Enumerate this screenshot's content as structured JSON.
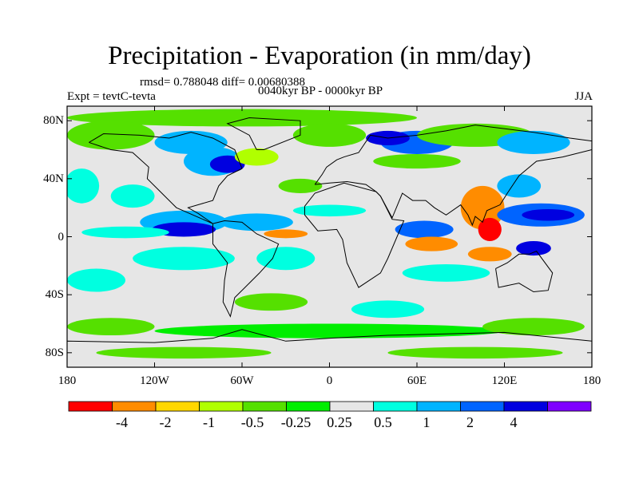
{
  "title": "Precipitation - Evaporation (in mm/day)",
  "stats": "rmsd= 0.788048 diff= 0.00680388",
  "period": "0040kyr BP - 0000kyr BP",
  "experiment": "Expt = tevtC-tevta",
  "season": "JJA",
  "axes": {
    "y_ticks": [
      {
        "label": "80N",
        "value": 80
      },
      {
        "label": "40N",
        "value": 40
      },
      {
        "label": "0",
        "value": 0
      },
      {
        "label": "40S",
        "value": -40
      },
      {
        "label": "80S",
        "value": -80
      }
    ],
    "x_ticks": [
      {
        "label": "180",
        "value": -180
      },
      {
        "label": "120W",
        "value": -120
      },
      {
        "label": "60W",
        "value": -60
      },
      {
        "label": "0",
        "value": 0
      },
      {
        "label": "60E",
        "value": 60
      },
      {
        "label": "120E",
        "value": 120
      },
      {
        "label": "180",
        "value": 180
      }
    ],
    "lon_range": [
      -180,
      180
    ],
    "lat_range": [
      -90,
      90
    ]
  },
  "colorbar": {
    "colors": [
      "#ff0000",
      "#ff8c00",
      "#ffd700",
      "#b0ff00",
      "#55e000",
      "#00ee00",
      "#e6e6e6",
      "#00ffe0",
      "#00b4ff",
      "#0064ff",
      "#0000e0",
      "#7f00ff"
    ],
    "labels": [
      "-4",
      "-2",
      "-1",
      "-0.5",
      "-0.25",
      "0.25",
      "0.5",
      "1",
      "2",
      "4"
    ]
  },
  "regions": [
    {
      "lon": -60,
      "lat": 82,
      "rx": 120,
      "ry": 6,
      "color": "#55e000"
    },
    {
      "lon": -150,
      "lat": 70,
      "rx": 30,
      "ry": 10,
      "color": "#55e000"
    },
    {
      "lon": -95,
      "lat": 65,
      "rx": 25,
      "ry": 8,
      "color": "#00b4ff"
    },
    {
      "lon": -80,
      "lat": 52,
      "rx": 20,
      "ry": 10,
      "color": "#00b4ff"
    },
    {
      "lon": -70,
      "lat": 50,
      "rx": 12,
      "ry": 6,
      "color": "#0000e0"
    },
    {
      "lon": -50,
      "lat": 55,
      "rx": 15,
      "ry": 6,
      "color": "#b0ff00"
    },
    {
      "lon": 0,
      "lat": 70,
      "rx": 25,
      "ry": 8,
      "color": "#55e000"
    },
    {
      "lon": 60,
      "lat": 65,
      "rx": 25,
      "ry": 8,
      "color": "#0064ff"
    },
    {
      "lon": 40,
      "lat": 68,
      "rx": 15,
      "ry": 5,
      "color": "#0000e0"
    },
    {
      "lon": 100,
      "lat": 70,
      "rx": 40,
      "ry": 8,
      "color": "#55e000"
    },
    {
      "lon": 140,
      "lat": 65,
      "rx": 25,
      "ry": 8,
      "color": "#00b4ff"
    },
    {
      "lon": 60,
      "lat": 52,
      "rx": 30,
      "ry": 5,
      "color": "#55e000"
    },
    {
      "lon": -170,
      "lat": 35,
      "rx": 12,
      "ry": 12,
      "color": "#00ffe0"
    },
    {
      "lon": -135,
      "lat": 28,
      "rx": 15,
      "ry": 8,
      "color": "#00ffe0"
    },
    {
      "lon": -20,
      "lat": 35,
      "rx": 15,
      "ry": 5,
      "color": "#55e000"
    },
    {
      "lon": -100,
      "lat": 10,
      "rx": 30,
      "ry": 8,
      "color": "#00b4ff"
    },
    {
      "lon": -100,
      "lat": 5,
      "rx": 22,
      "ry": 5,
      "color": "#0000e0"
    },
    {
      "lon": -50,
      "lat": 10,
      "rx": 25,
      "ry": 6,
      "color": "#00b4ff"
    },
    {
      "lon": -30,
      "lat": 2,
      "rx": 15,
      "ry": 3,
      "color": "#ff8c00"
    },
    {
      "lon": -140,
      "lat": 3,
      "rx": 30,
      "ry": 4,
      "color": "#00ffe0"
    },
    {
      "lon": 0,
      "lat": 18,
      "rx": 25,
      "ry": 4,
      "color": "#00ffe0"
    },
    {
      "lon": 65,
      "lat": 5,
      "rx": 20,
      "ry": 6,
      "color": "#0064ff"
    },
    {
      "lon": 70,
      "lat": -5,
      "rx": 18,
      "ry": 5,
      "color": "#ff8c00"
    },
    {
      "lon": 105,
      "lat": 20,
      "rx": 15,
      "ry": 15,
      "color": "#ff8c00"
    },
    {
      "lon": 110,
      "lat": 5,
      "rx": 8,
      "ry": 8,
      "color": "#ff0000"
    },
    {
      "lon": 145,
      "lat": 15,
      "rx": 30,
      "ry": 8,
      "color": "#0064ff"
    },
    {
      "lon": 150,
      "lat": 15,
      "rx": 18,
      "ry": 4,
      "color": "#0000e0"
    },
    {
      "lon": 130,
      "lat": 35,
      "rx": 15,
      "ry": 8,
      "color": "#00b4ff"
    },
    {
      "lon": 110,
      "lat": -12,
      "rx": 15,
      "ry": 5,
      "color": "#ff8c00"
    },
    {
      "lon": 140,
      "lat": -8,
      "rx": 12,
      "ry": 5,
      "color": "#0000e0"
    },
    {
      "lon": -100,
      "lat": -15,
      "rx": 35,
      "ry": 8,
      "color": "#00ffe0"
    },
    {
      "lon": -30,
      "lat": -15,
      "rx": 20,
      "ry": 8,
      "color": "#00ffe0"
    },
    {
      "lon": 80,
      "lat": -25,
      "rx": 30,
      "ry": 6,
      "color": "#00ffe0"
    },
    {
      "lon": -160,
      "lat": -30,
      "rx": 20,
      "ry": 8,
      "color": "#00ffe0"
    },
    {
      "lon": -40,
      "lat": -45,
      "rx": 25,
      "ry": 6,
      "color": "#55e000"
    },
    {
      "lon": 40,
      "lat": -50,
      "rx": 25,
      "ry": 6,
      "color": "#00ffe0"
    },
    {
      "lon": 0,
      "lat": -65,
      "rx": 120,
      "ry": 5,
      "color": "#00ee00"
    },
    {
      "lon": -150,
      "lat": -62,
      "rx": 30,
      "ry": 6,
      "color": "#55e000"
    },
    {
      "lon": 140,
      "lat": -62,
      "rx": 35,
      "ry": 6,
      "color": "#55e000"
    },
    {
      "lon": -100,
      "lat": -80,
      "rx": 60,
      "ry": 4,
      "color": "#55e000"
    },
    {
      "lon": 100,
      "lat": -80,
      "rx": 60,
      "ry": 4,
      "color": "#55e000"
    }
  ],
  "coastlines": [
    [
      [
        -165,
        65
      ],
      [
        -155,
        71
      ],
      [
        -130,
        70
      ],
      [
        -110,
        68
      ],
      [
        -95,
        72
      ],
      [
        -80,
        68
      ],
      [
        -65,
        60
      ],
      [
        -60,
        47
      ],
      [
        -70,
        42
      ],
      [
        -76,
        35
      ],
      [
        -80,
        25
      ],
      [
        -97,
        20
      ],
      [
        -90,
        16
      ],
      [
        -80,
        9
      ],
      [
        -105,
        20
      ],
      [
        -115,
        30
      ],
      [
        -125,
        40
      ],
      [
        -124,
        48
      ],
      [
        -135,
        58
      ],
      [
        -150,
        60
      ],
      [
        -165,
        65
      ]
    ],
    [
      [
        -80,
        9
      ],
      [
        -72,
        11
      ],
      [
        -60,
        10
      ],
      [
        -50,
        2
      ],
      [
        -35,
        -5
      ],
      [
        -39,
        -15
      ],
      [
        -48,
        -25
      ],
      [
        -58,
        -35
      ],
      [
        -65,
        -42
      ],
      [
        -68,
        -55
      ],
      [
        -73,
        -45
      ],
      [
        -72,
        -30
      ],
      [
        -70,
        -18
      ],
      [
        -80,
        -5
      ],
      [
        -80,
        9
      ]
    ],
    [
      [
        -50,
        60
      ],
      [
        -45,
        60
      ],
      [
        -20,
        70
      ],
      [
        -20,
        80
      ],
      [
        -55,
        82
      ],
      [
        -70,
        78
      ],
      [
        -55,
        70
      ],
      [
        -50,
        60
      ]
    ],
    [
      [
        -10,
        36
      ],
      [
        -5,
        43
      ],
      [
        -2,
        48
      ],
      [
        5,
        53
      ],
      [
        10,
        55
      ],
      [
        20,
        58
      ],
      [
        28,
        70
      ],
      [
        40,
        68
      ],
      [
        60,
        70
      ],
      [
        80,
        73
      ],
      [
        100,
        77
      ],
      [
        140,
        72
      ],
      [
        165,
        68
      ],
      [
        180,
        66
      ],
      [
        180,
        60
      ],
      [
        160,
        55
      ],
      [
        142,
        52
      ],
      [
        130,
        42
      ],
      [
        122,
        30
      ],
      [
        117,
        22
      ],
      [
        108,
        18
      ],
      [
        105,
        10
      ],
      [
        100,
        14
      ],
      [
        98,
        8
      ],
      [
        95,
        15
      ],
      [
        90,
        22
      ],
      [
        80,
        15
      ],
      [
        72,
        20
      ],
      [
        66,
        25
      ],
      [
        57,
        25
      ],
      [
        50,
        30
      ],
      [
        43,
        13
      ],
      [
        35,
        28
      ],
      [
        32,
        31
      ],
      [
        25,
        36
      ],
      [
        12,
        38
      ],
      [
        0,
        37
      ],
      [
        -10,
        36
      ]
    ],
    [
      [
        -17,
        21
      ],
      [
        -10,
        30
      ],
      [
        10,
        37
      ],
      [
        32,
        31
      ],
      [
        35,
        28
      ],
      [
        43,
        12
      ],
      [
        51,
        11
      ],
      [
        40,
        -15
      ],
      [
        35,
        -25
      ],
      [
        20,
        -35
      ],
      [
        12,
        -18
      ],
      [
        9,
        -2
      ],
      [
        5,
        5
      ],
      [
        -8,
        4
      ],
      [
        -17,
        15
      ],
      [
        -17,
        21
      ]
    ],
    [
      [
        114,
        -22
      ],
      [
        122,
        -18
      ],
      [
        130,
        -12
      ],
      [
        137,
        -12
      ],
      [
        142,
        -10
      ],
      [
        153,
        -25
      ],
      [
        150,
        -37
      ],
      [
        140,
        -38
      ],
      [
        130,
        -32
      ],
      [
        116,
        -35
      ],
      [
        114,
        -22
      ]
    ],
    [
      [
        -180,
        -72
      ],
      [
        -120,
        -73
      ],
      [
        -80,
        -70
      ],
      [
        -60,
        -64
      ],
      [
        -30,
        -72
      ],
      [
        0,
        -70
      ],
      [
        40,
        -68
      ],
      [
        80,
        -67
      ],
      [
        120,
        -66
      ],
      [
        160,
        -70
      ],
      [
        180,
        -72
      ],
      [
        180,
        -90
      ],
      [
        -180,
        -90
      ],
      [
        -180,
        -72
      ]
    ]
  ]
}
